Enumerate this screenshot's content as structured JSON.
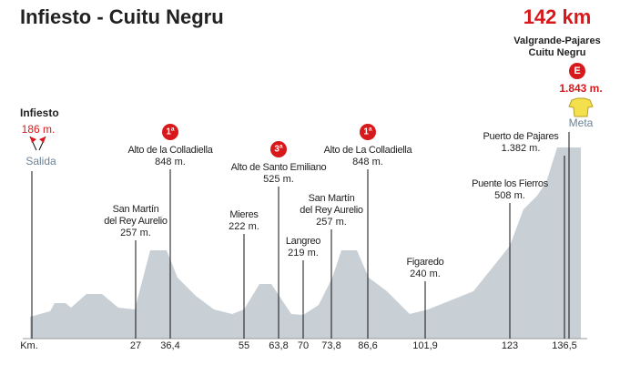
{
  "header": {
    "title": "Infiesto - Cuitu Negru",
    "distance": "142 km"
  },
  "start": {
    "name": "Infiesto",
    "altitude": "186 m.",
    "label": "Salida"
  },
  "finish": {
    "name_lines": [
      "Valgrande-Pajares",
      "Cuitu Negru"
    ],
    "category": "E",
    "altitude": "1.843 m.",
    "label": "Meta"
  },
  "axis": {
    "label": "Km."
  },
  "waypoints": [
    {
      "name_lines": [
        "San Martín",
        "del Rey Aurelio"
      ],
      "altitude": "257 m.",
      "km": "27"
    },
    {
      "name_lines": [
        "Alto de la Colladiella"
      ],
      "altitude": "848 m.",
      "km": "36,4",
      "category": "1ª"
    },
    {
      "name_lines": [
        "Mieres"
      ],
      "altitude": "222 m.",
      "km": "55"
    },
    {
      "name_lines": [
        "Alto de Santo Emiliano"
      ],
      "altitude": "525 m.",
      "km": "63,8",
      "category": "3ª"
    },
    {
      "name_lines": [
        "Langreo"
      ],
      "altitude": "219 m.",
      "km": "70"
    },
    {
      "name_lines": [
        "San Martín",
        "del Rey Aurelio"
      ],
      "altitude": "257 m.",
      "km": "73,8"
    },
    {
      "name_lines": [
        "Alto de La Colladiella"
      ],
      "altitude": "848 m.",
      "km": "86,6",
      "category": "1ª"
    },
    {
      "name_lines": [
        "Figaredo"
      ],
      "altitude": "240 m.",
      "km": "101,9"
    },
    {
      "name_lines": [
        "Puente los Fierros"
      ],
      "altitude": "508 m.",
      "km": "123"
    },
    {
      "name_lines": [
        "Puerto de Pajares"
      ],
      "altitude": "1.382 m.",
      "km": "136,5"
    }
  ]
}
